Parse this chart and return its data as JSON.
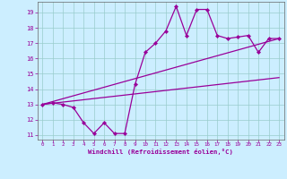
{
  "xlabel": "Windchill (Refroidissement éolien,°C)",
  "bg_color": "#cceeff",
  "line_color": "#990099",
  "grid_color": "#99cccc",
  "xlim": [
    -0.5,
    23.5
  ],
  "ylim": [
    10.7,
    19.7
  ],
  "yticks": [
    11,
    12,
    13,
    14,
    15,
    16,
    17,
    18,
    19
  ],
  "xticks": [
    0,
    1,
    2,
    3,
    4,
    5,
    6,
    7,
    8,
    9,
    10,
    11,
    12,
    13,
    14,
    15,
    16,
    17,
    18,
    19,
    20,
    21,
    22,
    23
  ],
  "line1_x": [
    0,
    1,
    2,
    3,
    4,
    5,
    6,
    7,
    8,
    9,
    10,
    11,
    12,
    13,
    14,
    15,
    16,
    17,
    18,
    19,
    20,
    21,
    22,
    23
  ],
  "line1_y": [
    13.0,
    13.1,
    13.0,
    12.8,
    11.8,
    11.1,
    11.8,
    11.1,
    11.1,
    14.3,
    16.4,
    17.0,
    17.8,
    19.4,
    17.5,
    19.2,
    19.2,
    17.5,
    17.3,
    17.4,
    17.5,
    16.4,
    17.3,
    17.3
  ],
  "line2_x": [
    0,
    23
  ],
  "line2_y": [
    13.0,
    17.3
  ],
  "line3_x": [
    0,
    23
  ],
  "line3_y": [
    13.0,
    14.75
  ],
  "marker": "D",
  "markersize": 2.2,
  "linewidth": 0.9
}
